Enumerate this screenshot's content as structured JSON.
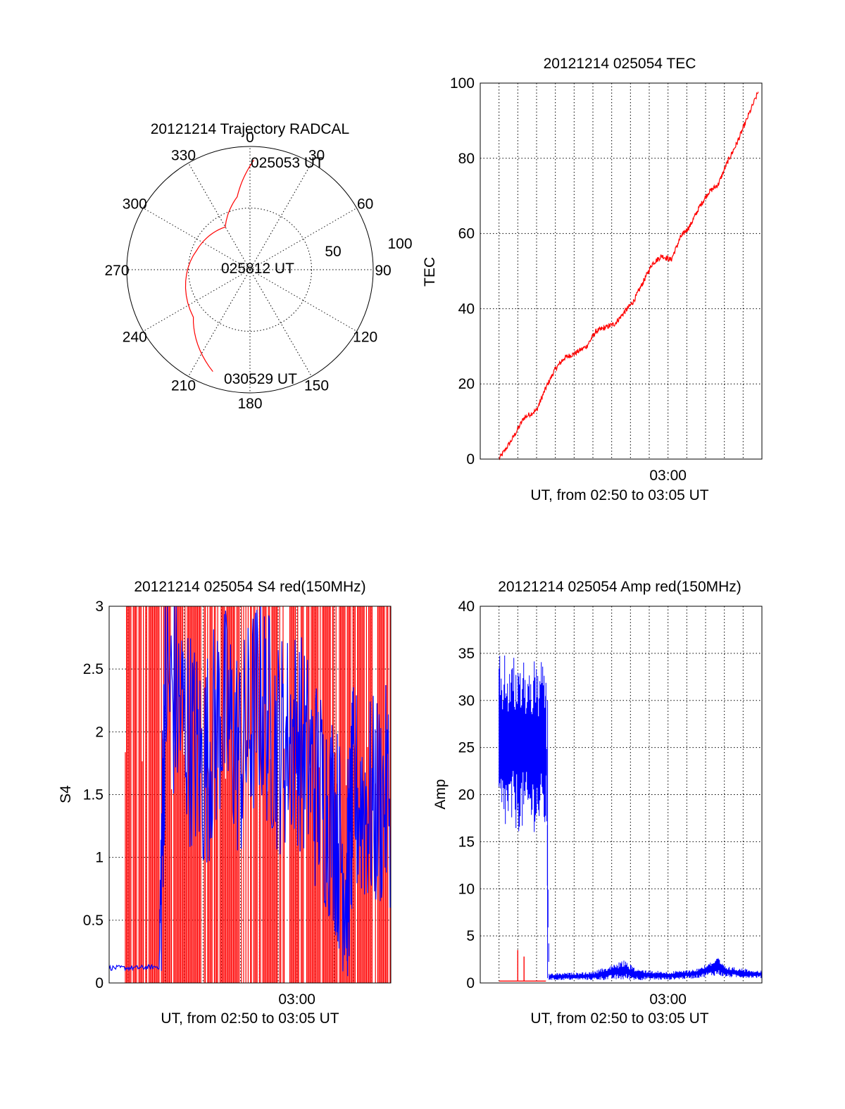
{
  "chart_data": [
    {
      "type": "polar",
      "title": "20121214 Trajectory RADCAL",
      "azimuth_labels": [
        "0",
        "30",
        "60",
        "90",
        "120",
        "150",
        "180",
        "210",
        "240",
        "270",
        "300",
        "330"
      ],
      "elevation_labels": [
        "50",
        "100"
      ],
      "rlim": [
        0,
        100
      ],
      "grid": true,
      "series": [
        {
          "color": "#ff0000",
          "points": [
            {
              "az": 2,
              "r": 89
            },
            {
              "az": 350,
              "r": 60
            },
            {
              "az": 330,
              "r": 40
            },
            {
              "az": 290,
              "r": 46
            },
            {
              "az": 230,
              "r": 60
            },
            {
              "az": 200,
              "r": 88
            }
          ]
        }
      ],
      "annotations": [
        "025053 UT",
        "025812 UT",
        "030529 UT"
      ]
    },
    {
      "type": "line",
      "title": "20121214 025054 TEC",
      "xlabel": "UT, from 02:50 to 03:05 UT",
      "ylabel": "TEC",
      "xlim": [
        "02:50",
        "03:05"
      ],
      "ylim": [
        0,
        100
      ],
      "xticks": [
        "03:00"
      ],
      "yticks": [
        "0",
        "20",
        "40",
        "60",
        "80",
        "100"
      ],
      "grid": true,
      "series": [
        {
          "color": "#ff0000",
          "x": [
            "02:51:00",
            "02:51:40",
            "02:52:20",
            "02:53:00",
            "02:53:30",
            "02:54:00",
            "02:54:30",
            "02:55:00",
            "02:55:40",
            "02:56:10",
            "02:56:40",
            "02:57:10",
            "02:57:40",
            "02:58:10",
            "02:58:40",
            "02:59:10",
            "02:59:40",
            "03:00:10",
            "03:00:40",
            "03:01:10",
            "03:01:40",
            "03:02:10",
            "03:02:40",
            "03:03:10",
            "03:03:40",
            "03:04:10",
            "03:04:50"
          ],
          "y": [
            0,
            5,
            11,
            13,
            19,
            24,
            27,
            28,
            30,
            34,
            35,
            36,
            39,
            42,
            47,
            52,
            54,
            53,
            59,
            62,
            67,
            71,
            73,
            79,
            84,
            90,
            98
          ]
        }
      ]
    },
    {
      "type": "line",
      "title": "20121214 025054 S4 red(150MHz)",
      "xlabel": "UT, from 02:50 to 03:05 UT",
      "ylabel": "S4",
      "xlim": [
        "02:50",
        "03:05"
      ],
      "ylim": [
        0,
        3
      ],
      "xticks": [
        "03:00"
      ],
      "yticks": [
        "0",
        "0.5",
        "1",
        "1.5",
        "2",
        "2.5",
        "3"
      ],
      "grid": true,
      "series": [
        {
          "color": "#ff0000",
          "x": [
            "02:50:00",
            "02:52:40",
            "02:55:00",
            "02:57:40",
            "03:00:00",
            "03:02:20",
            "03:05:00"
          ],
          "y": [
            3,
            3,
            3,
            3,
            3,
            3,
            3
          ],
          "note_saturated": true
        },
        {
          "color": "#0000ff",
          "x": [
            "02:50:00",
            "02:51:30",
            "02:52:40",
            "02:53:00",
            "02:54:00",
            "02:55:00",
            "02:56:00",
            "02:57:00",
            "02:58:00",
            "02:59:00",
            "03:00:00",
            "03:01:00",
            "03:02:00",
            "03:02:40",
            "03:03:00",
            "03:04:00",
            "03:05:00"
          ],
          "y": [
            0.12,
            0.12,
            0.13,
            2.4,
            2.1,
            1.7,
            2.2,
            1.8,
            2.3,
            1.9,
            2.0,
            1.6,
            1.3,
            0.8,
            1.5,
            1.4,
            1.5
          ]
        }
      ]
    },
    {
      "type": "line",
      "title": "20121214 025054 Amp red(150MHz)",
      "xlabel": "UT, from 02:50 to 03:05 UT",
      "ylabel": "Amp",
      "xlim": [
        "02:50",
        "03:05"
      ],
      "ylim": [
        0,
        40
      ],
      "xticks": [
        "03:00"
      ],
      "yticks": [
        "0",
        "5",
        "10",
        "15",
        "20",
        "25",
        "30",
        "35",
        "40"
      ],
      "grid": true,
      "series": [
        {
          "color": "#0000ff",
          "x": [
            "02:51:00",
            "02:53:30",
            "02:53:40",
            "02:56:00",
            "02:57:40",
            "02:58:20",
            "03:00:00",
            "03:01:30",
            "03:02:40",
            "03:03:00",
            "03:05:00"
          ],
          "ymin": [
            16,
            16,
            0.3,
            0.3,
            0.3,
            0.3,
            0.3,
            0.5,
            0.8,
            0.6,
            0.5
          ],
          "ymax": [
            35,
            34,
            1,
            1.2,
            2.4,
            1.5,
            1.2,
            1.5,
            2.7,
            1.8,
            1.3
          ]
        },
        {
          "color": "#ff0000",
          "x": [
            "02:51:00",
            "02:52:00",
            "02:52:20",
            "02:53:30"
          ],
          "y": [
            0.2,
            3.5,
            2.8,
            0.2
          ]
        }
      ]
    }
  ]
}
